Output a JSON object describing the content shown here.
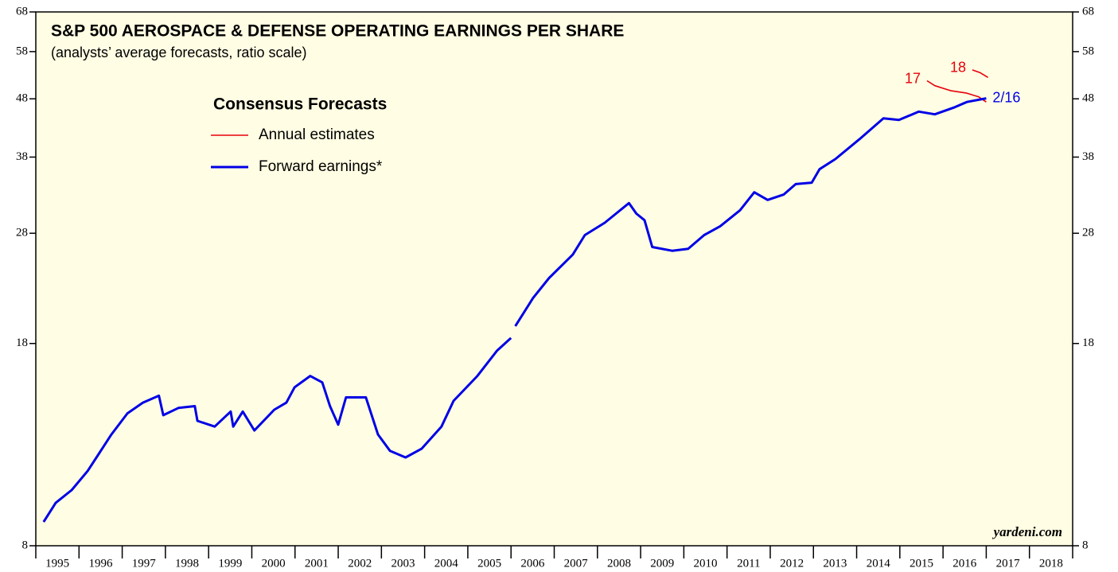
{
  "chart_data": {
    "type": "line",
    "title": "S&P 500 AEROSPACE & DEFENSE OPERATING EARNINGS PER SHARE",
    "subtitle": "(analysts’ average forecasts, ratio scale)",
    "legend_title": "Consensus Forecasts",
    "source": "yardeni.com",
    "log_scale": true,
    "categories": [
      "1995",
      "1996",
      "1997",
      "1998",
      "1999",
      "2000",
      "2001",
      "2002",
      "2003",
      "2004",
      "2005",
      "2006",
      "2007",
      "2008",
      "2009",
      "2010",
      "2011",
      "2012",
      "2013",
      "2014",
      "2015",
      "2016",
      "2017",
      "2018"
    ],
    "xlim": [
      1995,
      2019
    ],
    "xticks": [
      1995,
      1996,
      1997,
      1998,
      1999,
      2000,
      2001,
      2002,
      2003,
      2004,
      2005,
      2006,
      2007,
      2008,
      2009,
      2010,
      2011,
      2012,
      2013,
      2014,
      2015,
      2016,
      2017,
      2018,
      2019
    ],
    "ylim": [
      8,
      68
    ],
    "yticks": [
      8,
      18,
      28,
      38,
      48,
      58,
      68
    ],
    "series": [
      {
        "name": "Annual estimates",
        "color": "#e8000b",
        "lines": [
          {
            "label": "17",
            "x": [
              2015.63,
              2015.81,
              2016.17,
              2016.55,
              2016.82,
              2017.0
            ],
            "values": [
              51.6,
              50.6,
              49.6,
              49.1,
              48.4,
              47.4
            ]
          },
          {
            "label": "18",
            "x": [
              2016.68,
              2016.86,
              2017.04
            ],
            "values": [
              53.9,
              53.3,
              52.3
            ]
          }
        ]
      },
      {
        "name": "Forward earnings*",
        "color": "#0000e6",
        "end_label": "2/16",
        "x": [
          1995.18,
          1995.46,
          1995.83,
          1996.2,
          1996.47,
          1996.75,
          1997.12,
          1997.48,
          1997.85,
          1997.95,
          1998.3,
          1998.68,
          1998.74,
          1999.14,
          1999.51,
          1999.57,
          1999.79,
          2000.06,
          2000.52,
          2000.8,
          2000.99,
          2001.35,
          2001.63,
          2001.81,
          2002.0,
          2002.18,
          2002.64,
          2002.92,
          2003.2,
          2003.56,
          2003.93,
          2004.39,
          2004.67,
          2005.22,
          2005.68,
          2006.0,
          2006.05,
          2006.1,
          2006.51,
          2006.88,
          2007.43,
          2007.71,
          2008.17,
          2008.73,
          2008.9,
          2009.09,
          2009.27,
          2009.73,
          2010.1,
          2010.47,
          2010.84,
          2011.3,
          2011.63,
          2011.94,
          2012.31,
          2012.59,
          2012.96,
          2013.14,
          2013.51,
          2014.06,
          2014.62,
          2014.98,
          2015.44,
          2015.81,
          2016.27,
          2016.55,
          2017.0
        ],
        "values": [
          8.8,
          9.5,
          10.0,
          10.8,
          11.6,
          12.5,
          13.6,
          14.2,
          14.6,
          13.5,
          13.9,
          14.0,
          13.2,
          12.9,
          13.7,
          12.9,
          13.7,
          12.7,
          13.8,
          14.2,
          15.1,
          15.8,
          15.4,
          14.0,
          13.0,
          14.5,
          14.5,
          12.5,
          11.7,
          11.4,
          11.8,
          12.9,
          14.3,
          15.8,
          17.5,
          18.4,
          null,
          19.3,
          21.6,
          23.4,
          25.7,
          27.8,
          29.2,
          31.6,
          30.3,
          29.5,
          26.5,
          26.1,
          26.3,
          27.8,
          28.8,
          30.7,
          33.0,
          32.0,
          32.7,
          34.1,
          34.3,
          36.2,
          37.7,
          40.8,
          44.4,
          44.1,
          45.6,
          45.1,
          46.4,
          47.4,
          48.1
        ]
      }
    ]
  }
}
